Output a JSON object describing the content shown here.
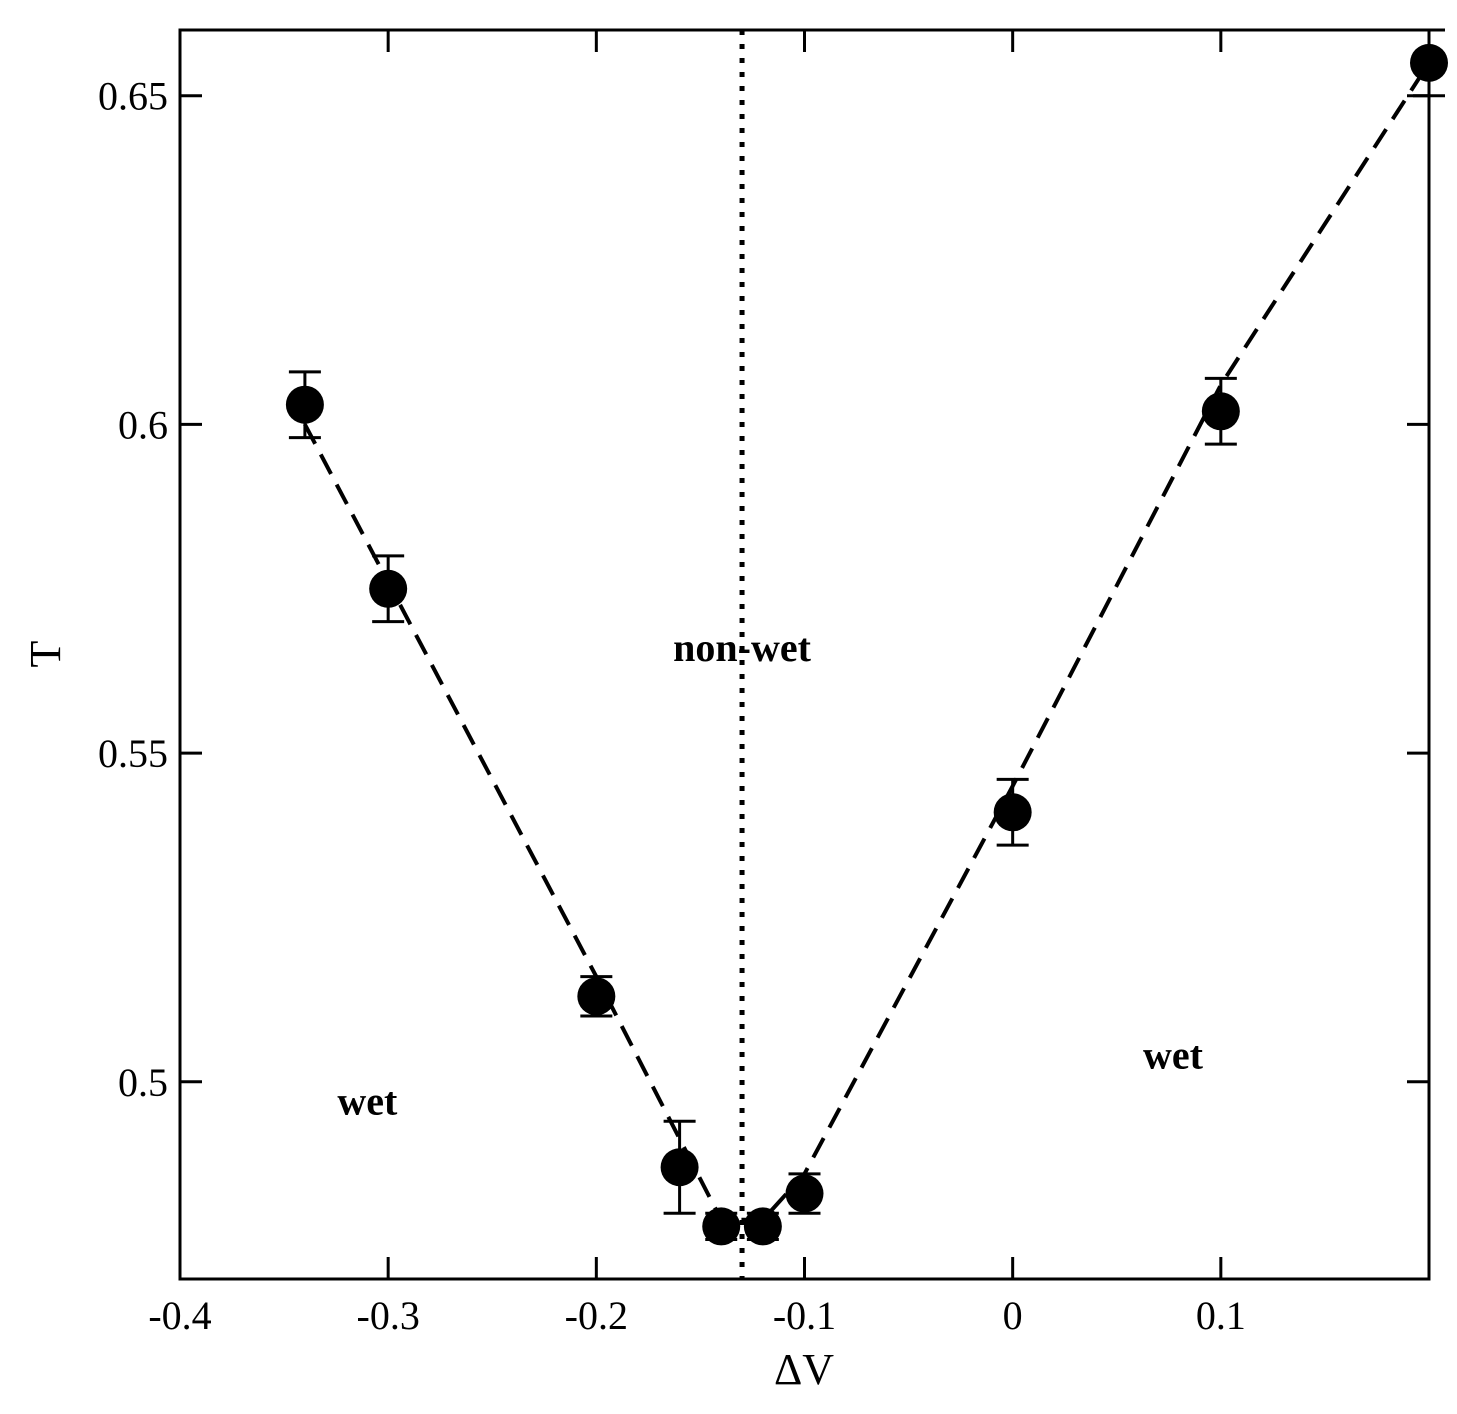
{
  "chart_data": {
    "type": "scatter",
    "xlabel": "ΔV",
    "ylabel": "T",
    "xlim": [
      -0.4,
      0.2
    ],
    "ylim": [
      0.47,
      0.66
    ],
    "x_ticks": [
      {
        "value": -0.4,
        "label": "-0.4"
      },
      {
        "value": -0.3,
        "label": "-0.3"
      },
      {
        "value": -0.2,
        "label": "-0.2"
      },
      {
        "value": -0.1,
        "label": "-0.1"
      },
      {
        "value": 0.0,
        "label": "0"
      },
      {
        "value": 0.1,
        "label": "0.1"
      }
    ],
    "y_ticks": [
      {
        "value": 0.5,
        "label": "0.5"
      },
      {
        "value": 0.55,
        "label": "0.55"
      },
      {
        "value": 0.6,
        "label": "0.6"
      },
      {
        "value": 0.65,
        "label": "0.65"
      }
    ],
    "grid": false,
    "series": [
      {
        "marker": "filled-circle",
        "color": "#000000",
        "points": [
          {
            "x": -0.34,
            "y": 0.603,
            "err": 0.005
          },
          {
            "x": -0.3,
            "y": 0.575,
            "err": 0.005
          },
          {
            "x": -0.2,
            "y": 0.513,
            "err": 0.003
          },
          {
            "x": -0.16,
            "y": 0.487,
            "err": 0.007
          },
          {
            "x": -0.14,
            "y": 0.478,
            "err": 0.002
          },
          {
            "x": -0.12,
            "y": 0.478,
            "err": 0.002
          },
          {
            "x": -0.1,
            "y": 0.483,
            "err": 0.003
          },
          {
            "x": 0.0,
            "y": 0.541,
            "err": 0.005
          },
          {
            "x": 0.1,
            "y": 0.602,
            "err": 0.005
          },
          {
            "x": 0.2,
            "y": 0.655,
            "err": 0.005
          }
        ]
      }
    ],
    "fit_lines": [
      {
        "style": "dashed",
        "points": [
          [
            -0.34,
            0.6
          ],
          [
            -0.2,
            0.516
          ],
          [
            -0.14,
            0.479
          ],
          [
            -0.12,
            0.479
          ],
          [
            -0.1,
            0.486
          ],
          [
            0.0,
            0.545
          ],
          [
            0.1,
            0.606
          ],
          [
            0.2,
            0.655
          ]
        ]
      }
    ],
    "reference_lines": [
      {
        "orientation": "vertical",
        "x": -0.13,
        "style": "dotted"
      }
    ],
    "annotations": [
      {
        "text": "non-wet",
        "x": -0.13,
        "y": 0.564
      },
      {
        "text": "wet",
        "x": -0.31,
        "y": 0.495
      },
      {
        "text": "wet",
        "x": 0.077,
        "y": 0.502
      }
    ]
  }
}
